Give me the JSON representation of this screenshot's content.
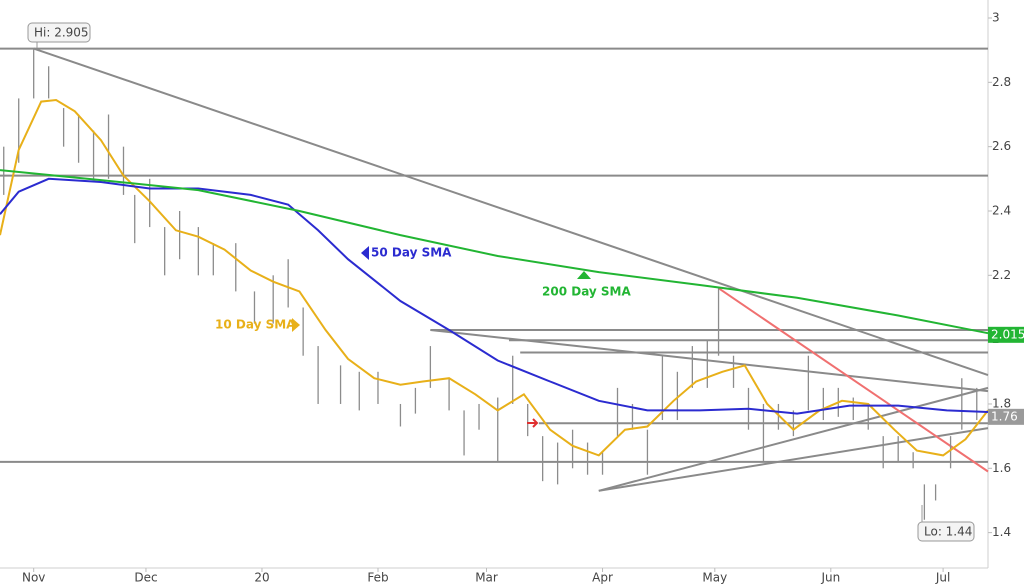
{
  "chart_data": {
    "type": "ohlc",
    "xlim": [
      -9,
      255
    ],
    "ylim": [
      1.29,
      3.056
    ],
    "xticks": [
      {
        "value": 0,
        "label": "Nov"
      },
      {
        "value": 30,
        "label": "Dec"
      },
      {
        "value": 61,
        "label": "20"
      },
      {
        "value": 92,
        "label": "Feb"
      },
      {
        "value": 121,
        "label": "Mar"
      },
      {
        "value": 152,
        "label": "Apr"
      },
      {
        "value": 182,
        "label": "May"
      },
      {
        "value": 213,
        "label": "Jun"
      },
      {
        "value": 243,
        "label": "Jul"
      }
    ],
    "yticks": [
      1.4,
      1.6,
      1.8,
      2,
      2.2,
      2.4,
      2.6,
      2.8,
      3
    ],
    "bars": {
      "color": "#8c8c8c",
      "x": [
        -8,
        -4,
        0,
        4,
        8,
        12,
        16,
        20,
        24,
        27,
        31,
        35,
        39,
        44,
        48,
        54,
        59,
        64,
        68,
        72,
        76,
        82,
        87,
        92,
        98,
        102,
        106,
        111,
        115,
        119,
        124,
        128,
        132,
        136,
        140,
        144,
        148,
        152,
        156,
        160,
        164,
        168,
        172,
        176,
        180,
        183,
        187,
        191,
        195,
        199,
        203,
        207,
        211,
        215,
        219,
        223,
        227,
        231,
        235,
        238,
        241,
        245,
        248,
        252
      ],
      "high": [
        2.6,
        2.75,
        2.905,
        2.85,
        2.72,
        2.7,
        2.65,
        2.7,
        2.6,
        2.45,
        2.5,
        2.35,
        2.4,
        2.35,
        2.3,
        2.3,
        2.15,
        2.2,
        2.25,
        2.1,
        1.98,
        1.92,
        1.9,
        1.9,
        1.8,
        1.85,
        1.98,
        1.88,
        1.78,
        1.8,
        1.82,
        1.95,
        1.8,
        1.7,
        1.68,
        1.72,
        1.68,
        1.65,
        1.85,
        1.8,
        1.72,
        1.95,
        1.9,
        1.98,
        2.0,
        2.16,
        1.95,
        1.85,
        1.8,
        1.8,
        1.78,
        1.95,
        1.85,
        1.85,
        1.82,
        1.8,
        1.7,
        1.7,
        1.65,
        1.55,
        1.55,
        1.7,
        1.88,
        1.85
      ],
      "low": [
        2.45,
        2.55,
        2.75,
        2.75,
        2.6,
        2.55,
        2.5,
        2.5,
        2.45,
        2.3,
        2.35,
        2.2,
        2.25,
        2.2,
        2.2,
        2.15,
        2.05,
        2.05,
        2.1,
        1.95,
        1.8,
        1.8,
        1.78,
        1.8,
        1.73,
        1.77,
        1.85,
        1.78,
        1.64,
        1.72,
        1.62,
        1.8,
        1.7,
        1.56,
        1.55,
        1.6,
        1.58,
        1.58,
        1.7,
        1.72,
        1.58,
        1.75,
        1.75,
        1.85,
        1.85,
        1.95,
        1.85,
        1.72,
        1.62,
        1.72,
        1.7,
        1.78,
        1.75,
        1.76,
        1.75,
        1.72,
        1.6,
        1.62,
        1.6,
        1.44,
        1.5,
        1.6,
        1.72,
        1.75
      ],
      "last": 1.76
    },
    "series": [
      {
        "name": "10 Day SMA",
        "color": "#e8b019",
        "x": [
          -9,
          -4,
          2,
          6,
          11,
          18,
          24,
          31,
          38,
          44,
          51,
          58,
          64,
          71,
          78,
          84,
          91,
          98,
          104,
          111,
          118,
          124,
          131,
          138,
          144,
          151,
          158,
          164,
          171,
          177,
          184,
          190,
          196,
          203,
          210,
          216,
          223,
          230,
          236,
          243,
          249,
          255
        ],
        "values": [
          2.325,
          2.59,
          2.74,
          2.745,
          2.71,
          2.62,
          2.51,
          2.43,
          2.34,
          2.32,
          2.28,
          2.215,
          2.18,
          2.15,
          2.03,
          1.94,
          1.88,
          1.86,
          1.87,
          1.88,
          1.83,
          1.78,
          1.83,
          1.72,
          1.67,
          1.64,
          1.72,
          1.73,
          1.81,
          1.87,
          1.9,
          1.92,
          1.8,
          1.72,
          1.78,
          1.81,
          1.8,
          1.72,
          1.655,
          1.64,
          1.69,
          1.78
        ]
      },
      {
        "name": "50 Day SMA",
        "color": "#2b2bd0",
        "x": [
          -9,
          -4,
          4,
          18,
          31,
          44,
          58,
          68,
          76,
          84,
          98,
          111,
          124,
          138,
          151,
          164,
          178,
          191,
          204,
          218,
          231,
          244,
          255
        ],
        "values": [
          2.39,
          2.46,
          2.5,
          2.49,
          2.47,
          2.47,
          2.45,
          2.42,
          2.34,
          2.25,
          2.12,
          2.03,
          1.935,
          1.87,
          1.81,
          1.78,
          1.78,
          1.785,
          1.77,
          1.795,
          1.795,
          1.78,
          1.775
        ]
      },
      {
        "name": "200 Day SMA",
        "color": "#22b533",
        "x": [
          -9,
          18,
          44,
          71,
          98,
          124,
          151,
          178,
          204,
          231,
          255
        ],
        "values": [
          2.527,
          2.496,
          2.465,
          2.4,
          2.325,
          2.26,
          2.21,
          2.17,
          2.13,
          2.075,
          2.02
        ],
        "last": 2.015
      }
    ],
    "lines": [
      {
        "color": "#8a8a8a",
        "x": [
          -9,
          255
        ],
        "values": [
          2.905,
          2.905
        ]
      },
      {
        "color": "#8a8a8a",
        "x": [
          -9,
          255
        ],
        "values": [
          2.51,
          2.51
        ]
      },
      {
        "color": "#8a8a8a",
        "x": [
          -9,
          255
        ],
        "values": [
          1.62,
          1.62
        ]
      },
      {
        "color": "#8a8a8a",
        "x": [
          106,
          255
        ],
        "values": [
          2.03,
          2.03
        ]
      },
      {
        "color": "#8a8a8a",
        "x": [
          127,
          255
        ],
        "values": [
          1.998,
          1.998
        ]
      },
      {
        "color": "#8a8a8a",
        "x": [
          130,
          255
        ],
        "values": [
          1.96,
          1.96
        ]
      },
      {
        "color": "#8a8a8a",
        "x": [
          135,
          255
        ],
        "values": [
          1.74,
          1.74
        ]
      },
      {
        "color": "#8a8a8a",
        "x": [
          0,
          255
        ],
        "values": [
          2.905,
          1.89
        ]
      },
      {
        "color": "#8a8a8a",
        "x": [
          106,
          255
        ],
        "values": [
          2.03,
          1.84
        ]
      },
      {
        "color": "#8a8a8a",
        "x": [
          151,
          255
        ],
        "values": [
          1.53,
          1.85
        ]
      },
      {
        "color": "#8a8a8a",
        "x": [
          151,
          255
        ],
        "values": [
          1.53,
          1.725
        ]
      },
      {
        "color": "#f07070",
        "x": [
          183,
          255
        ],
        "values": [
          2.16,
          1.59
        ]
      }
    ],
    "annotations": {
      "hi": "Hi: 2.905",
      "lo": "Lo: 1.44"
    }
  }
}
